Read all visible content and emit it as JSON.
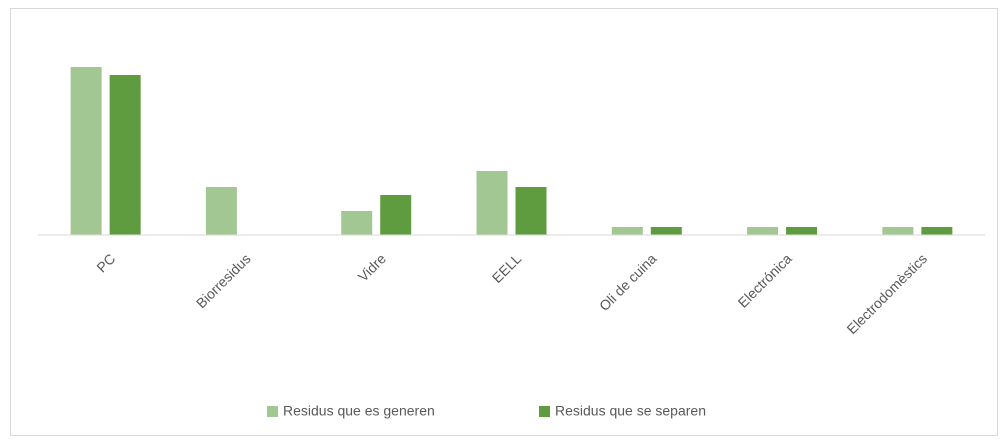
{
  "chart_data": {
    "type": "bar",
    "categories": [
      "PC",
      "Biorresidus",
      "Vidre",
      "EELL",
      "Oli de cuina",
      "Electrónica",
      "Electrodomèstics"
    ],
    "series": [
      {
        "name": "Residus que es generen",
        "color": "#a3c793",
        "values": [
          21,
          6,
          3,
          8,
          1,
          1,
          1
        ]
      },
      {
        "name": "Residus que se separen",
        "color": "#5f9b3f",
        "values": [
          20,
          0,
          5,
          6,
          1,
          1,
          1
        ]
      }
    ],
    "ylim": [
      0,
      25
    ],
    "legend": "bottom"
  }
}
